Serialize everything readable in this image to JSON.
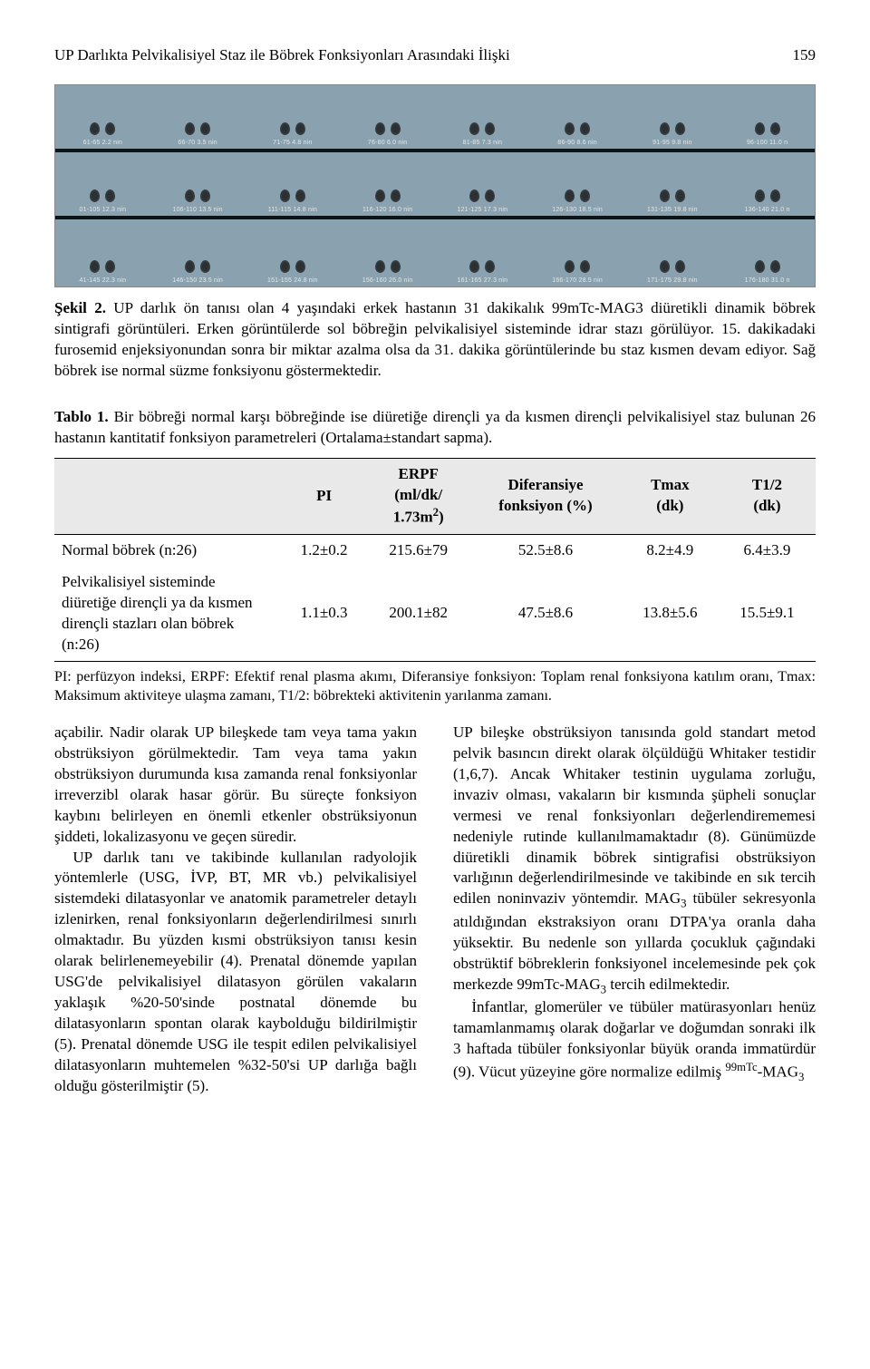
{
  "page": {
    "running_title": "UP Darlıkta Pelvikalisiyel Staz ile Böbrek Fonksiyonları Arasındaki İlişki",
    "page_number": "159"
  },
  "figure": {
    "bg_color": "#8aa2b0",
    "row_border_color": "#0c1418",
    "label_color": "#e2e8ea",
    "labels": [
      [
        "61-65  2.2 nin",
        "66-70  3.5 nin",
        "71-75  4.8 nin",
        "76-80  6.0 nin",
        "81-85  7.3 nin",
        "86-90  8.6 nin",
        "91-95  9.8 nin",
        "96-100  11.0 n"
      ],
      [
        "01-105  12.3 nin",
        "106-110  13.5 nin",
        "111-115  14.8 nin",
        "116-120  16.0 nin",
        "121-125  17.3 nin",
        "126-130  18.5 nin",
        "131-135  19.8 nin",
        "136-140  21.0 n"
      ],
      [
        "41-145  22.3 nin",
        "146-150  23.5 nin",
        "151-155  24.8 nin",
        "156-160  26.0 nin",
        "161-165  27.3 nin",
        "166-170  28.5 nin",
        "171-175  29.8 nin",
        "176-180  31.0 n"
      ]
    ],
    "caption_label": "Şekil 2.",
    "caption_text": " UP darlık ön tanısı olan 4 yaşındaki erkek hastanın 31 dakikalık 99mTc-MAG3 diüretikli dinamik böbrek sintigrafi görüntüleri. Erken görüntülerde sol böbreğin pelvikalisiyel sisteminde idrar stazı görülüyor. 15. dakikadaki furosemid enjeksiyonundan sonra bir miktar azalma olsa da 31. dakika görüntülerinde bu staz kısmen devam ediyor. Sağ böbrek ise normal süzme fonksiyonu göstermektedir."
  },
  "table": {
    "caption_label": "Tablo 1.",
    "caption_text": " Bir böbreği normal karşı böbreğinde ise diüretiğe dirençli ya da kısmen dirençli pelvikalisiyel staz bulunan 26 hastanın kantitatif fonksiyon parametreleri (Ortalama±standart sapma).",
    "header_bg": "#e9e9e9",
    "columns": {
      "c0": "",
      "c1": "PI",
      "c2_l1": "ERPF",
      "c2_l2": "(ml/dk/",
      "c2_l3": "1.73m",
      "c2_sup": "2",
      "c2_l4": ")",
      "c3_l1": "Diferansiye",
      "c3_l2": "fonksiyon (%)",
      "c4_l1": "Tmax",
      "c4_l2": "(dk)",
      "c5_l1": "T1/2",
      "c5_l2": "(dk)"
    },
    "rows": [
      {
        "label": "Normal böbrek (n:26)",
        "pi": "1.2±0.2",
        "erpf": "215.6±79",
        "df": "52.5±8.6",
        "tmax": "8.2±4.9",
        "t12": "6.4±3.9"
      },
      {
        "label": "Pelvikalisiyel sisteminde diüretiğe dirençli ya da kısmen dirençli stazları olan böbrek (n:26)",
        "pi": "1.1±0.3",
        "erpf": "200.1±82",
        "df": "47.5±8.6",
        "tmax": "13.8±5.6",
        "t12": "15.5±9.1"
      }
    ],
    "footnote": "PI: perfüzyon indeksi, ERPF: Efektif renal plasma akımı, Diferansiye fonksiyon: Toplam renal fonksiyona katılım oranı, Tmax: Maksimum aktiviteye ulaşma zamanı, T1/2: böbrekteki aktivitenin yarılanma zamanı."
  },
  "body": {
    "left_p1": "açabilir. Nadir olarak UP bileşkede tam veya tama yakın obstrüksiyon görülmektedir. Tam veya tama yakın obstrüksiyon durumunda kısa zamanda renal fonksiyonlar irreverzibl olarak hasar görür. Bu süreçte fonksiyon kaybını belirleyen en önemli etkenler obstrüksiyonun şiddeti, lokalizasyonu ve geçen süredir.",
    "left_p2": "UP darlık tanı ve takibinde kullanılan radyolojik yöntemlerle (USG, İVP, BT, MR vb.) pelvikalisiyel sistemdeki dilatasyonlar ve anatomik parametreler detaylı izlenirken, renal fonksiyonların değerlendirilmesi sınırlı olmaktadır. Bu yüzden kısmi obstrüksiyon tanısı kesin olarak belirlenemeyebilir (4). Prenatal dönemde yapılan USG'de pelvikalisiyel dilatasyon görülen vakaların yaklaşık %20-50'sinde postnatal dönemde bu dilatasyonların spontan olarak kaybolduğu bildirilmiştir (5). Prenatal dönemde USG ile tespit edilen pelvikalisiyel dilatasyonların muhtemelen %32-50'si UP darlığa bağlı olduğu gösterilmiştir (5).",
    "right_p1": "UP bileşke obstrüksiyon tanısında gold standart metod pelvik basıncın direkt olarak ölçüldüğü Whitaker testidir (1,6,7). Ancak Whitaker testinin uygulama zorluğu, invaziv olması, vakaların bir kısmında şüpheli sonuçlar vermesi ve renal fonksiyonları değerlendirememesi nedeniyle rutinde kullanılmamaktadır (8). Günümüzde diüretikli dinamik böbrek sintigrafisi obstrüksiyon varlığının değerlendirilmesinde ve takibinde en sık tercih edilen noninvaziv yöntemdir. MAG",
    "right_sub1": "3",
    "right_p1b": " tübüler sekresyonla atıldığından ekstraksiyon oranı DTPA'ya oranla daha yüksektir. Bu nedenle son yıllarda çocukluk çağındaki obstrüktif böbreklerin fonksiyonel incelemesinde pek çok merkezde 99mTc-MAG",
    "right_sub2": "3",
    "right_p1c": " tercih edilmektedir.",
    "right_p2": "İnfantlar, glomerüler ve tübüler matürasyonları henüz tamamlanmamış olarak doğarlar ve doğumdan sonraki ilk 3 haftada tübüler fonksiyonlar büyük oranda immatürdür (9). Vücut yüzeyine göre normalize edilmiş ",
    "right_sup": "99mTc",
    "right_p2b": "-MAG",
    "right_sub3": "3"
  }
}
